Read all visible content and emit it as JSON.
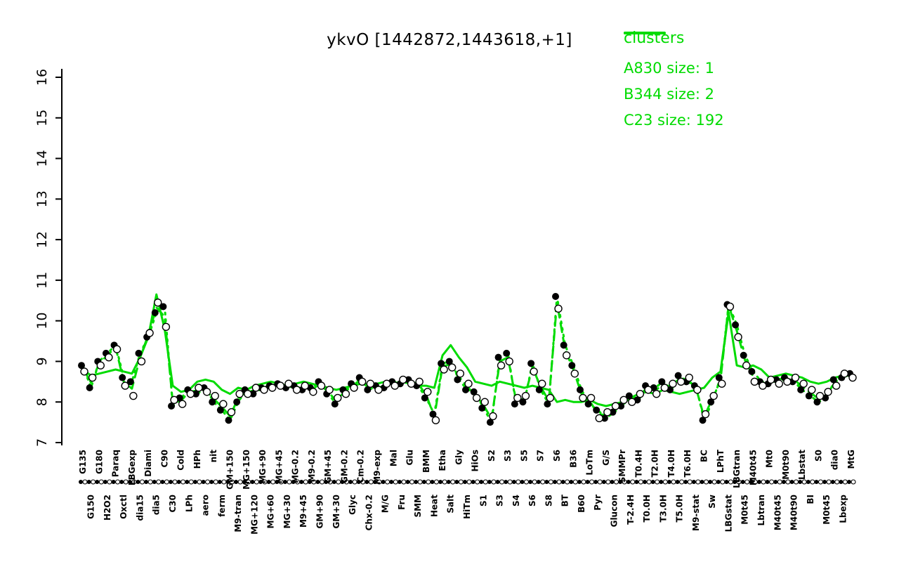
{
  "chart_data": {
    "type": "line",
    "title": "ykvO [1442872,1443618,+1]",
    "xlabel": "",
    "ylabel": "",
    "ylim": [
      7,
      16
    ],
    "yticks": [
      7,
      8,
      9,
      10,
      11,
      12,
      13,
      14,
      15,
      16
    ],
    "grid": false,
    "legend_position": "top-right",
    "colors": {
      "cluster": "#00DB00",
      "points_filled": "#000000",
      "points_open_stroke": "#000000",
      "background": "#ffffff"
    },
    "legend": {
      "title": "clusters",
      "entries": [
        {
          "label": "A830 size: 1",
          "style": "dotted"
        },
        {
          "label": "B344 size: 2",
          "style": "dashed"
        },
        {
          "label": "C23 size: 192",
          "style": "solid"
        }
      ]
    },
    "categories": [
      "G135",
      "G150",
      "G180",
      "H2O2",
      "Paraq",
      "Oxctl",
      "LBGexp",
      "dia15",
      "Diami",
      "dia5",
      "C90",
      "C30",
      "Cold",
      "LPh",
      "HPh",
      "aero",
      "nit",
      "ferm",
      "GM+150",
      "M9-tran",
      "MG+150",
      "MG+120",
      "MG+90",
      "MG+60",
      "MG+45",
      "MG+30",
      "MG-0.2",
      "M9+45",
      "M9-0.2",
      "GM+90",
      "GM+45",
      "GM+30",
      "GM-0.2",
      "Glyc",
      "Cm-0.2",
      "Chx-0.2",
      "M9-exp",
      "M/G",
      "Mal",
      "Fru",
      "Glu",
      "SMM",
      "BMM",
      "Heat",
      "Etha",
      "Salt",
      "Gly",
      "HiTm",
      "HiOs",
      "S1",
      "S2",
      "S3",
      "S3",
      "S4",
      "S5",
      "S6",
      "S7",
      "S8",
      "S6",
      "BT",
      "B36",
      "B60",
      "LoTm",
      "Pyr",
      "G/S",
      "Glucon",
      "SMMPr",
      "T-2.4H",
      "T0.4H",
      "T0.0H",
      "T2.0H",
      "T3.0H",
      "T4.0H",
      "T5.0H",
      "T6.0H",
      "M9-stat",
      "BC",
      "Sw",
      "LPhT",
      "LBGstat",
      "LBGtran",
      "M0t45",
      "M40t45",
      "Lbtran",
      "Mt0",
      "M40t45",
      "M0t90",
      "M40t90",
      "Lbstat",
      "BI",
      "S0",
      "M0t45",
      "dia0",
      "Lbexp",
      "MtG"
    ],
    "series": [
      {
        "name": "gene-filled",
        "type": "points-filled",
        "values": [
          8.9,
          8.35,
          9.0,
          9.2,
          9.4,
          8.6,
          8.5,
          9.2,
          9.6,
          10.2,
          10.35,
          7.9,
          8.1,
          8.3,
          8.2,
          8.35,
          8.0,
          7.8,
          7.55,
          8.0,
          8.3,
          8.2,
          8.35,
          8.4,
          8.45,
          8.35,
          8.4,
          8.3,
          8.35,
          8.5,
          8.2,
          7.95,
          8.3,
          8.45,
          8.6,
          8.3,
          8.4,
          8.35,
          8.5,
          8.45,
          8.55,
          8.4,
          8.1,
          7.7,
          8.95,
          9.0,
          8.55,
          8.3,
          8.25,
          7.85,
          7.5,
          9.1,
          9.2,
          7.95,
          8.0,
          8.95,
          8.3,
          7.95,
          10.6,
          9.4,
          8.9,
          8.3,
          7.95,
          7.8,
          7.6,
          7.75,
          7.9,
          8.15,
          8.05,
          8.4,
          8.35,
          8.5,
          8.3,
          8.65,
          8.5,
          8.4,
          7.55,
          8.0,
          8.6,
          10.4,
          9.9,
          9.15,
          8.75,
          8.5,
          8.45,
          8.55,
          8.6,
          8.5,
          8.3,
          8.15,
          8.0,
          8.1,
          8.55,
          8.6,
          8.7
        ]
      },
      {
        "name": "gene-open",
        "type": "points-open",
        "values": [
          8.75,
          8.6,
          8.9,
          9.1,
          9.3,
          8.4,
          8.15,
          9.0,
          9.7,
          10.45,
          9.85,
          8.05,
          7.95,
          8.2,
          8.35,
          8.25,
          8.15,
          7.95,
          7.75,
          8.2,
          8.2,
          8.35,
          8.3,
          8.35,
          8.4,
          8.45,
          8.3,
          8.4,
          8.25,
          8.4,
          8.3,
          8.1,
          8.2,
          8.35,
          8.5,
          8.45,
          8.3,
          8.45,
          8.4,
          8.55,
          8.45,
          8.5,
          8.25,
          7.55,
          8.8,
          8.85,
          8.7,
          8.45,
          8.1,
          8.0,
          7.65,
          8.9,
          9.0,
          8.1,
          8.15,
          8.75,
          8.45,
          8.1,
          10.3,
          9.15,
          8.7,
          8.1,
          8.1,
          7.6,
          7.75,
          7.9,
          8.05,
          8.0,
          8.2,
          8.3,
          8.2,
          8.35,
          8.45,
          8.5,
          8.6,
          8.3,
          7.7,
          8.15,
          8.45,
          10.35,
          9.6,
          8.9,
          8.5,
          8.4,
          8.55,
          8.45,
          8.5,
          8.6,
          8.45,
          8.3,
          8.15,
          8.25,
          8.4,
          8.7,
          8.6
        ]
      },
      {
        "name": "A830",
        "type": "cluster-line",
        "style": "dotted",
        "values": [
          8.9,
          8.35,
          9.0,
          9.2,
          9.4,
          8.6,
          8.5,
          9.2,
          9.6,
          10.2,
          10.35,
          7.9,
          8.1,
          8.3,
          8.2,
          8.35,
          8.0,
          7.8,
          7.55,
          8.0,
          8.3,
          8.2,
          8.35,
          8.4,
          8.45,
          8.35,
          8.4,
          8.3,
          8.35,
          8.5,
          8.2,
          7.95,
          8.3,
          8.45,
          8.6,
          8.3,
          8.4,
          8.35,
          8.5,
          8.45,
          8.55,
          8.4,
          8.1,
          7.7,
          8.95,
          9.0,
          8.55,
          8.3,
          8.25,
          7.85,
          7.5,
          9.1,
          9.2,
          7.95,
          8.0,
          8.95,
          8.3,
          7.95,
          10.6,
          9.4,
          8.9,
          8.3,
          7.95,
          7.8,
          7.6,
          7.75,
          7.9,
          8.15,
          8.05,
          8.4,
          8.35,
          8.5,
          8.3,
          8.65,
          8.5,
          8.4,
          7.55,
          8.0,
          8.6,
          10.4,
          9.9,
          9.15,
          8.75,
          8.5,
          8.45,
          8.55,
          8.6,
          8.5,
          8.3,
          8.15,
          8.0,
          8.1,
          8.55,
          8.6,
          8.7
        ]
      },
      {
        "name": "B344",
        "type": "cluster-line",
        "style": "dashed",
        "values": [
          8.83,
          8.48,
          8.95,
          9.15,
          9.35,
          8.5,
          8.33,
          9.1,
          9.65,
          10.33,
          10.1,
          7.98,
          8.03,
          8.25,
          8.28,
          8.3,
          8.08,
          7.88,
          7.65,
          8.1,
          8.25,
          8.28,
          8.33,
          8.38,
          8.43,
          8.4,
          8.35,
          8.35,
          8.3,
          8.45,
          8.25,
          8.03,
          8.25,
          8.4,
          8.55,
          8.38,
          8.35,
          8.4,
          8.45,
          8.5,
          8.5,
          8.45,
          8.18,
          7.63,
          8.88,
          8.93,
          8.63,
          8.38,
          8.18,
          7.93,
          7.58,
          9.0,
          9.1,
          8.03,
          8.08,
          8.85,
          8.38,
          8.03,
          10.45,
          9.28,
          8.8,
          8.2,
          8.03,
          7.7,
          7.68,
          7.83,
          7.98,
          8.08,
          8.13,
          8.35,
          8.28,
          8.43,
          8.38,
          8.58,
          8.55,
          8.35,
          7.63,
          8.08,
          8.53,
          10.38,
          9.75,
          9.03,
          8.63,
          8.45,
          8.5,
          8.5,
          8.55,
          8.55,
          8.38,
          8.23,
          8.08,
          8.18,
          8.48,
          8.65,
          8.65
        ]
      },
      {
        "name": "C23",
        "type": "cluster-line",
        "style": "solid",
        "values": [
          8.8,
          8.65,
          8.7,
          8.75,
          8.8,
          8.75,
          8.7,
          9.1,
          9.6,
          10.65,
          9.8,
          8.4,
          8.25,
          8.3,
          8.5,
          8.55,
          8.5,
          8.3,
          8.2,
          8.35,
          8.3,
          8.4,
          8.45,
          8.5,
          8.45,
          8.4,
          8.45,
          8.5,
          8.45,
          8.4,
          8.35,
          8.3,
          8.35,
          8.4,
          8.45,
          8.4,
          8.45,
          8.5,
          8.45,
          8.5,
          8.45,
          8.4,
          8.4,
          8.35,
          9.15,
          9.4,
          9.1,
          8.85,
          8.5,
          8.45,
          8.4,
          8.5,
          8.45,
          8.4,
          8.35,
          8.4,
          8.35,
          8.3,
          8.0,
          8.05,
          8.0,
          8.0,
          8.05,
          7.95,
          7.9,
          7.95,
          8.0,
          8.1,
          8.2,
          8.25,
          8.2,
          8.3,
          8.25,
          8.2,
          8.25,
          8.3,
          8.35,
          8.6,
          8.75,
          10.2,
          8.9,
          8.85,
          8.9,
          8.8,
          8.6,
          8.65,
          8.7,
          8.65,
          8.6,
          8.5,
          8.45,
          8.5,
          8.6,
          8.65,
          8.7
        ]
      }
    ]
  }
}
